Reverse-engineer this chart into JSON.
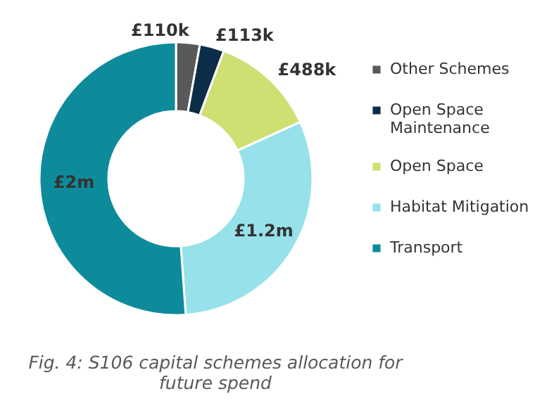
{
  "chart_data": {
    "type": "donut",
    "categories": [
      "Other Schemes",
      "Open Space Maintenance",
      "Open Space",
      "Habitat Mitigation",
      "Transport"
    ],
    "values": [
      110000,
      113000,
      488000,
      1200000,
      2000000
    ],
    "value_labels": [
      "£110k",
      "£113k",
      "£488k",
      "£1.2m",
      "£2m"
    ],
    "colors": [
      "#595959",
      "#0c2d48",
      "#cfdf72",
      "#97e1ea",
      "#0e8b9b"
    ],
    "legend": "right",
    "annotations": [
      "Fig. 4: S106 capital schemes allocation for future spend"
    ]
  }
}
